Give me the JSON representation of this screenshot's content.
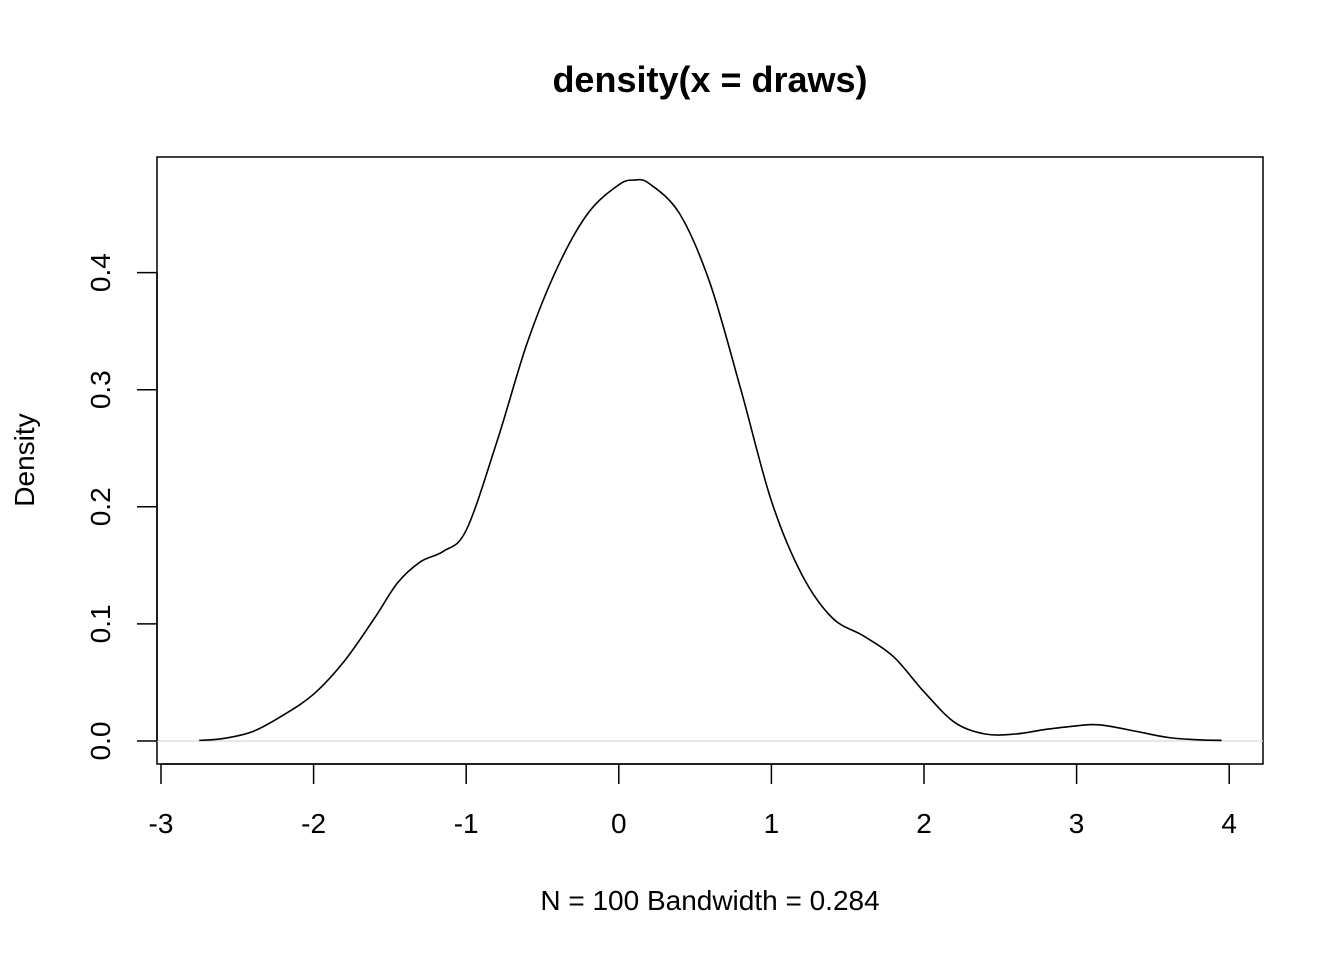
{
  "chart_data": {
    "type": "line",
    "title": "density(x = draws)",
    "xlabel": "N = 100   Bandwidth = 0.284",
    "ylabel": "Density",
    "xlim": [
      -3,
      4
    ],
    "ylim": [
      0,
      0.48
    ],
    "x_ticks": [
      -3,
      -2,
      -1,
      0,
      1,
      2,
      3,
      4
    ],
    "x_tick_labels": [
      "-3",
      "-2",
      "-1",
      "0",
      "1",
      "2",
      "3",
      "4"
    ],
    "y_ticks": [
      0,
      0.1,
      0.2,
      0.3,
      0.4
    ],
    "y_tick_labels": [
      "0.0",
      "0.1",
      "0.2",
      "0.3",
      "0.4"
    ],
    "grid": false,
    "legend": "none",
    "zero_line": true,
    "series": [
      {
        "x": [
          -2.75,
          -2.6,
          -2.4,
          -2.2,
          -2.0,
          -1.8,
          -1.6,
          -1.45,
          -1.3,
          -1.15,
          -1.0,
          -0.8,
          -0.6,
          -0.4,
          -0.2,
          0.0,
          0.1,
          0.2,
          0.4,
          0.6,
          0.8,
          1.0,
          1.2,
          1.4,
          1.6,
          1.8,
          2.0,
          2.2,
          2.4,
          2.6,
          2.8,
          3.0,
          3.1,
          3.2,
          3.4,
          3.6,
          3.8,
          3.95
        ],
        "y": [
          0.0005,
          0.002,
          0.008,
          0.022,
          0.04,
          0.068,
          0.105,
          0.135,
          0.153,
          0.162,
          0.18,
          0.255,
          0.34,
          0.405,
          0.451,
          0.475,
          0.479,
          0.476,
          0.45,
          0.39,
          0.3,
          0.205,
          0.142,
          0.105,
          0.09,
          0.072,
          0.042,
          0.016,
          0.006,
          0.006,
          0.01,
          0.013,
          0.014,
          0.013,
          0.008,
          0.003,
          0.001,
          0.0005
        ]
      }
    ]
  }
}
